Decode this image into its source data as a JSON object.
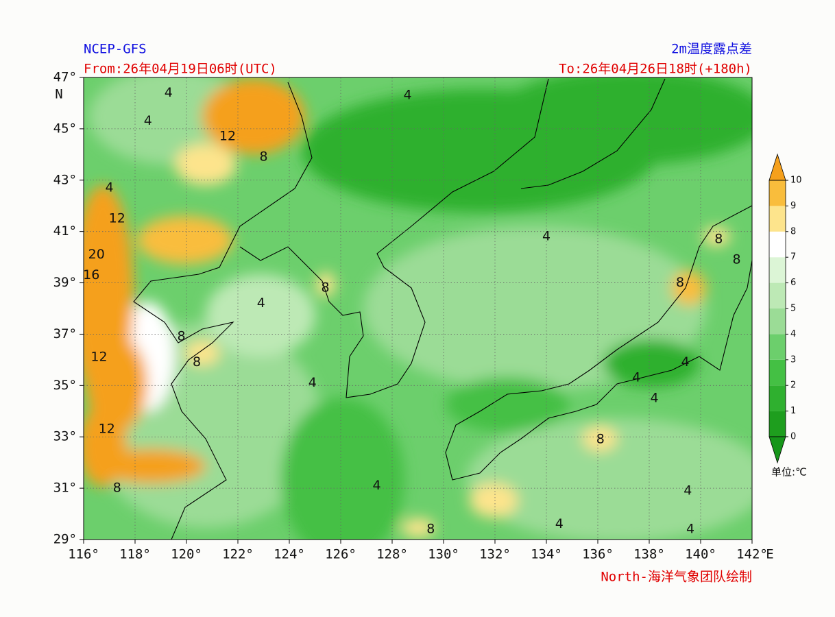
{
  "header": {
    "model": "NCEP-GFS",
    "title": "2m温度露点差",
    "from": "From:26年04月19日06时(UTC)",
    "to": "To:26年04月26日18时(+180h)",
    "credit": "North-海洋气象团队绘制"
  },
  "axes": {
    "lon_range": [
      116,
      142
    ],
    "lat_range": [
      29,
      47
    ],
    "lon_ticks": [
      {
        "value": 116,
        "label": "116°"
      },
      {
        "value": 118,
        "label": "118°"
      },
      {
        "value": 120,
        "label": "120°"
      },
      {
        "value": 122,
        "label": "122°"
      },
      {
        "value": 124,
        "label": "124°"
      },
      {
        "value": 126,
        "label": "126°"
      },
      {
        "value": 128,
        "label": "128°"
      },
      {
        "value": 130,
        "label": "130°"
      },
      {
        "value": 132,
        "label": "132°"
      },
      {
        "value": 134,
        "label": "134°"
      },
      {
        "value": 136,
        "label": "136°"
      },
      {
        "value": 138,
        "label": "138°"
      },
      {
        "value": 140,
        "label": "140°"
      },
      {
        "value": 142,
        "label": "142°"
      }
    ],
    "lon_unit": "E",
    "lat_ticks": [
      {
        "value": 29,
        "label": "29°"
      },
      {
        "value": 31,
        "label": "31°"
      },
      {
        "value": 33,
        "label": "33°"
      },
      {
        "value": 35,
        "label": "35°"
      },
      {
        "value": 37,
        "label": "37°"
      },
      {
        "value": 39,
        "label": "39°"
      },
      {
        "value": 41,
        "label": "41°"
      },
      {
        "value": 43,
        "label": "43°"
      },
      {
        "value": 45,
        "label": "45°"
      },
      {
        "value": 47,
        "label": "47°"
      }
    ],
    "lat_unit": "N"
  },
  "colorbar": {
    "levels": [
      0,
      1,
      2,
      3,
      4,
      5,
      6,
      7,
      8,
      9,
      10
    ],
    "colors": [
      "#1e9e1e",
      "#2fb02f",
      "#44c044",
      "#6ccf6c",
      "#9bdc96",
      "#bde9b5",
      "#dcf5d6",
      "#ffffff",
      "#fde48c",
      "#f9bd3c"
    ],
    "under_color": "#16961a",
    "over_color": "#f5a01c",
    "unit": "单位:℃"
  },
  "contour_labels": [
    {
      "text": "4",
      "lon": 119.3,
      "lat": 46.4
    },
    {
      "text": "4",
      "lon": 118.5,
      "lat": 45.3
    },
    {
      "text": "12",
      "lon": 121.6,
      "lat": 44.7
    },
    {
      "text": "8",
      "lon": 123.0,
      "lat": 43.9
    },
    {
      "text": "4",
      "lon": 117.0,
      "lat": 42.7
    },
    {
      "text": "12",
      "lon": 117.3,
      "lat": 41.5
    },
    {
      "text": "20",
      "lon": 116.5,
      "lat": 40.1
    },
    {
      "text": "16",
      "lon": 116.3,
      "lat": 39.3
    },
    {
      "text": "4",
      "lon": 122.9,
      "lat": 38.2
    },
    {
      "text": "8",
      "lon": 125.4,
      "lat": 38.8
    },
    {
      "text": "8",
      "lon": 119.8,
      "lat": 36.9
    },
    {
      "text": "8",
      "lon": 120.4,
      "lat": 35.9
    },
    {
      "text": "12",
      "lon": 116.6,
      "lat": 36.1
    },
    {
      "text": "4",
      "lon": 124.9,
      "lat": 35.1
    },
    {
      "text": "12",
      "lon": 116.9,
      "lat": 33.3
    },
    {
      "text": "8",
      "lon": 117.3,
      "lat": 31.0
    },
    {
      "text": "4",
      "lon": 127.4,
      "lat": 31.1
    },
    {
      "text": "8",
      "lon": 129.5,
      "lat": 29.4
    },
    {
      "text": "8",
      "lon": 136.1,
      "lat": 32.9
    },
    {
      "text": "4",
      "lon": 134.0,
      "lat": 40.8
    },
    {
      "text": "8",
      "lon": 140.7,
      "lat": 40.7
    },
    {
      "text": "8",
      "lon": 141.4,
      "lat": 39.9
    },
    {
      "text": "8",
      "lon": 139.2,
      "lat": 39.0
    },
    {
      "text": "4",
      "lon": 139.4,
      "lat": 35.9
    },
    {
      "text": "4",
      "lon": 137.5,
      "lat": 35.3
    },
    {
      "text": "4",
      "lon": 138.2,
      "lat": 34.5
    },
    {
      "text": "4",
      "lon": 128.6,
      "lat": 46.3
    },
    {
      "text": "4",
      "lon": 139.5,
      "lat": 30.9
    },
    {
      "text": "4",
      "lon": 134.5,
      "lat": 29.6
    },
    {
      "text": "4",
      "lon": 139.6,
      "lat": 29.4
    }
  ]
}
